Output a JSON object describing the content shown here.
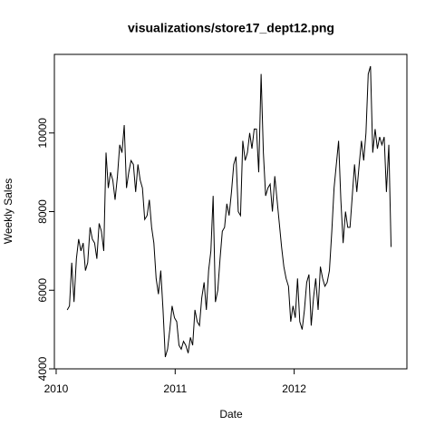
{
  "chart_data": {
    "type": "line",
    "title": "visualizations/store17_dept12.png",
    "xlabel": "Date",
    "ylabel": "Weekly Sales",
    "color": "#000000",
    "x": [
      2010.093,
      2010.112,
      2010.131,
      2010.15,
      2010.17,
      2010.189,
      2010.208,
      2010.227,
      2010.246,
      2010.265,
      2010.285,
      2010.304,
      2010.323,
      2010.342,
      2010.361,
      2010.38,
      2010.4,
      2010.419,
      2010.438,
      2010.457,
      2010.476,
      2010.495,
      2010.515,
      2010.534,
      2010.553,
      2010.572,
      2010.591,
      2010.61,
      2010.629,
      2010.649,
      2010.668,
      2010.687,
      2010.706,
      2010.725,
      2010.744,
      2010.764,
      2010.783,
      2010.802,
      2010.821,
      2010.84,
      2010.859,
      2010.879,
      2010.898,
      2010.917,
      2010.936,
      2010.955,
      2010.974,
      2010.994,
      2011.013,
      2011.032,
      2011.051,
      2011.07,
      2011.089,
      2011.109,
      2011.128,
      2011.147,
      2011.166,
      2011.185,
      2011.204,
      2011.223,
      2011.243,
      2011.262,
      2011.281,
      2011.3,
      2011.319,
      2011.338,
      2011.358,
      2011.377,
      2011.396,
      2011.415,
      2011.434,
      2011.453,
      2011.473,
      2011.492,
      2011.511,
      2011.53,
      2011.549,
      2011.568,
      2011.588,
      2011.607,
      2011.626,
      2011.645,
      2011.664,
      2011.683,
      2011.702,
      2011.722,
      2011.741,
      2011.76,
      2011.779,
      2011.798,
      2011.817,
      2011.837,
      2011.856,
      2011.875,
      2011.894,
      2011.913,
      2011.932,
      2011.952,
      2011.971,
      2011.99,
      2012.009,
      2012.028,
      2012.047,
      2012.067,
      2012.086,
      2012.105,
      2012.124,
      2012.143,
      2012.162,
      2012.181,
      2012.201,
      2012.22,
      2012.239,
      2012.258,
      2012.277,
      2012.296,
      2012.316,
      2012.335,
      2012.354,
      2012.373,
      2012.392,
      2012.411,
      2012.431,
      2012.45,
      2012.469,
      2012.488,
      2012.507,
      2012.526,
      2012.546,
      2012.565,
      2012.584,
      2012.603,
      2012.622,
      2012.641,
      2012.66,
      2012.68,
      2012.699,
      2012.718,
      2012.737,
      2012.756,
      2012.775,
      2012.795,
      2012.814
    ],
    "values": [
      5500,
      5600,
      6700,
      5700,
      6800,
      7300,
      7000,
      7200,
      6500,
      6700,
      7600,
      7300,
      7200,
      6800,
      7700,
      7500,
      7000,
      9500,
      8600,
      9000,
      8800,
      8300,
      8900,
      9700,
      9500,
      10200,
      8600,
      9000,
      9300,
      9200,
      8500,
      9200,
      8800,
      8600,
      7800,
      7900,
      8300,
      7600,
      7200,
      6300,
      5900,
      6500,
      5500,
      4300,
      4500,
      5000,
      5600,
      5300,
      5200,
      4600,
      4500,
      4700,
      4600,
      4400,
      4800,
      4600,
      5500,
      5200,
      5100,
      5800,
      6200,
      5500,
      6500,
      7000,
      8400,
      5700,
      6000,
      6800,
      7500,
      7600,
      8200,
      7900,
      8500,
      9200,
      9400,
      8000,
      7900,
      9800,
      9300,
      9500,
      10000,
      9600,
      10100,
      10100,
      9000,
      11500,
      9500,
      8400,
      8600,
      8700,
      8000,
      8900,
      8300,
      7700,
      7100,
      6600,
      6300,
      6100,
      5200,
      5600,
      5300,
      6300,
      5200,
      5000,
      5500,
      6200,
      6400,
      5100,
      5800,
      6300,
      5500,
      6600,
      6300,
      6100,
      6200,
      6500,
      7500,
      8600,
      9200,
      9800,
      8300,
      7200,
      8000,
      7600,
      7600,
      8400,
      9200,
      8500,
      9200,
      9800,
      9300,
      10000,
      11500,
      11700,
      9500,
      10100,
      9600,
      9900,
      9700,
      9900,
      8500,
      9700,
      7100
    ],
    "xlim": [
      2009.985,
      2012.947
    ],
    "xticks": [
      2010,
      2011,
      2012
    ],
    "ylim": [
      4000,
      12000
    ],
    "yticks": [
      4000,
      6000,
      8000,
      10000
    ]
  }
}
